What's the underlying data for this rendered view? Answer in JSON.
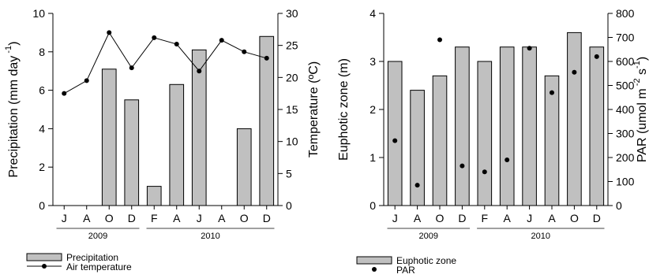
{
  "colors": {
    "bar_fill": "#c0c0c0",
    "bar_stroke": "#000000",
    "line": "#000000"
  },
  "chart_data": [
    {
      "type": "bar+line",
      "categories": [
        "J",
        "A",
        "O",
        "D",
        "F",
        "A",
        "J",
        "A",
        "O",
        "D"
      ],
      "year_groups": [
        {
          "label": "2009",
          "from": 0,
          "to": 3
        },
        {
          "label": "2010",
          "from": 4,
          "to": 9
        }
      ],
      "series": [
        {
          "name": "Precipitation",
          "type": "bar",
          "axis": "left",
          "values": [
            null,
            null,
            7.1,
            5.5,
            1.0,
            6.3,
            8.1,
            null,
            4.0,
            8.8
          ]
        },
        {
          "name": "Air temperature",
          "type": "line",
          "axis": "right",
          "values": [
            17.5,
            19.5,
            27.0,
            21.5,
            26.2,
            25.2,
            21.0,
            25.8,
            24.0,
            23.0
          ]
        }
      ],
      "y_left": {
        "label": "Precipitation (mm day",
        "label_sup": "-1",
        "label_close": ")",
        "ylim": [
          0,
          10
        ],
        "ticks": [
          0,
          2,
          4,
          6,
          8,
          10
        ]
      },
      "y_right": {
        "label": "Temperature (ºC)",
        "ylim": [
          0,
          30
        ],
        "ticks": [
          0,
          5,
          10,
          15,
          20,
          25,
          30
        ]
      },
      "legend": {
        "position": "bottom-left",
        "items": [
          "Precipitation",
          "Air temperature"
        ]
      },
      "grid": false
    },
    {
      "type": "bar+scatter",
      "categories": [
        "J",
        "A",
        "O",
        "D",
        "F",
        "A",
        "J",
        "A",
        "O",
        "D"
      ],
      "year_groups": [
        {
          "label": "2009",
          "from": 0,
          "to": 3
        },
        {
          "label": "2010",
          "from": 4,
          "to": 9
        }
      ],
      "series": [
        {
          "name": "Euphotic zone",
          "type": "bar",
          "axis": "left",
          "values": [
            3.0,
            2.4,
            2.7,
            3.3,
            3.0,
            3.3,
            3.3,
            2.7,
            3.6,
            3.3
          ]
        },
        {
          "name": "PAR",
          "type": "scatter",
          "axis": "right",
          "values": [
            270,
            85,
            690,
            165,
            140,
            190,
            655,
            470,
            555,
            620
          ]
        }
      ],
      "y_left": {
        "label": "Euphotic zone (m)",
        "ylim": [
          0,
          4
        ],
        "ticks": [
          0,
          1,
          2,
          3,
          4
        ]
      },
      "y_right": {
        "label": "PAR (umol m",
        "label_sup1": "-2",
        "label_mid": " s",
        "label_sup2": "-1",
        "label_close": ")",
        "ylim": [
          0,
          800
        ],
        "ticks": [
          0,
          100,
          200,
          300,
          400,
          500,
          600,
          700,
          800
        ]
      },
      "legend": {
        "position": "bottom-left",
        "items": [
          "Euphotic zone",
          "PAR"
        ]
      },
      "grid": false
    }
  ]
}
